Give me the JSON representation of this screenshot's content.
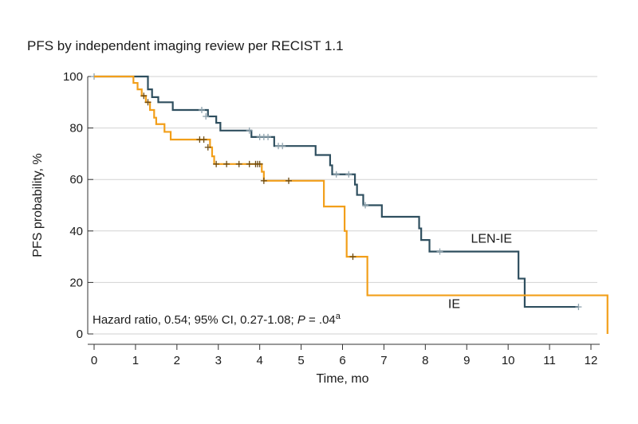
{
  "chart_data": {
    "type": "line",
    "subtype": "kaplan-meier step",
    "title": "PFS by independent imaging review per RECIST 1.1",
    "xlabel": "Time, mo",
    "ylabel": "PFS probability, %",
    "xlim": [
      0,
      12.5
    ],
    "ylim": [
      0,
      100
    ],
    "xticks": [
      0,
      1,
      2,
      3,
      4,
      5,
      6,
      7,
      8,
      9,
      10,
      11,
      12
    ],
    "yticks": [
      0,
      20,
      40,
      60,
      80,
      100
    ],
    "grid": "horizontal",
    "annotation": {
      "prefix": "Hazard ratio, 0.54; 95% CI, 0.27-1.08; ",
      "p_label": "P",
      "p_value": " = .04",
      "superscript": "a"
    },
    "series": [
      {
        "name": "LEN-IE",
        "color": "#2f4f5f",
        "censor_color": "#8fa3ae",
        "steps": [
          [
            0,
            100
          ],
          [
            1.3,
            95
          ],
          [
            1.4,
            92
          ],
          [
            1.55,
            90
          ],
          [
            1.9,
            87
          ],
          [
            2.75,
            84.5
          ],
          [
            2.95,
            82
          ],
          [
            3.05,
            79
          ],
          [
            3.8,
            76.5
          ],
          [
            4.35,
            73
          ],
          [
            5.35,
            69.5
          ],
          [
            5.7,
            65.5
          ],
          [
            5.75,
            62
          ],
          [
            6.3,
            58
          ],
          [
            6.35,
            54
          ],
          [
            6.5,
            50
          ],
          [
            6.95,
            45.5
          ],
          [
            7.85,
            41
          ],
          [
            7.9,
            36.5
          ],
          [
            8.1,
            32
          ],
          [
            10.25,
            21.5
          ],
          [
            10.4,
            10.5
          ],
          [
            11.7,
            10.5
          ]
        ],
        "censored": [
          [
            0,
            100
          ],
          [
            2.6,
            87
          ],
          [
            2.7,
            84.5
          ],
          [
            3.75,
            79
          ],
          [
            4.0,
            76.5
          ],
          [
            4.1,
            76.5
          ],
          [
            4.2,
            76.5
          ],
          [
            4.45,
            73
          ],
          [
            4.55,
            73
          ],
          [
            5.85,
            62
          ],
          [
            6.15,
            62
          ],
          [
            6.55,
            50
          ],
          [
            8.35,
            32
          ],
          [
            11.7,
            10.5
          ]
        ],
        "label": "LEN-IE"
      },
      {
        "name": "IE",
        "color": "#f29f1a",
        "censor_color": "#6b4a12",
        "steps": [
          [
            0,
            100
          ],
          [
            0.95,
            97.5
          ],
          [
            1.05,
            95
          ],
          [
            1.15,
            92.5
          ],
          [
            1.25,
            90
          ],
          [
            1.35,
            87
          ],
          [
            1.45,
            84
          ],
          [
            1.5,
            81.5
          ],
          [
            1.7,
            78.5
          ],
          [
            1.85,
            75.5
          ],
          [
            2.8,
            72.5
          ],
          [
            2.85,
            69
          ],
          [
            2.9,
            66
          ],
          [
            4.05,
            63
          ],
          [
            4.1,
            59.5
          ],
          [
            5.55,
            49.5
          ],
          [
            6.05,
            40
          ],
          [
            6.1,
            30
          ],
          [
            6.6,
            15
          ],
          [
            12.4,
            15
          ],
          [
            12.4,
            0
          ]
        ],
        "censored": [
          [
            1.2,
            92.5
          ],
          [
            1.3,
            90
          ],
          [
            2.55,
            75.5
          ],
          [
            2.65,
            75.5
          ],
          [
            2.75,
            72.5
          ],
          [
            2.95,
            66
          ],
          [
            3.2,
            66
          ],
          [
            3.5,
            66
          ],
          [
            3.75,
            66
          ],
          [
            3.9,
            66
          ],
          [
            3.95,
            66
          ],
          [
            4.0,
            66
          ],
          [
            4.1,
            59.5
          ],
          [
            4.7,
            59.5
          ],
          [
            6.25,
            30
          ]
        ],
        "label": "IE"
      }
    ]
  }
}
